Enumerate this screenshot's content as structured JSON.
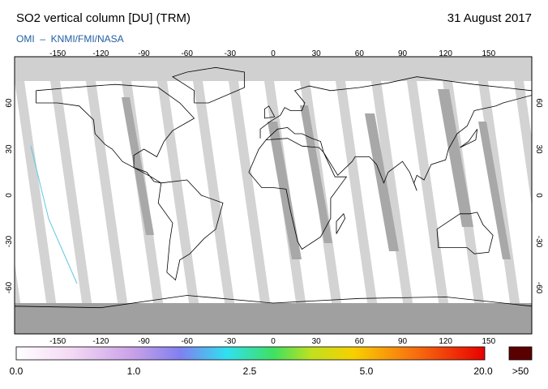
{
  "header": {
    "title": "SO2 vertical column [DU] (TRM)",
    "date": "31 August 2017",
    "source": "OMI  –  KNMI/FMI/NASA"
  },
  "map": {
    "lon_ticks": [
      -150,
      -120,
      -90,
      -60,
      -30,
      0,
      30,
      60,
      90,
      120,
      150
    ],
    "lat_ticks": [
      60,
      30,
      0,
      -30,
      -60
    ]
  },
  "colorbar": {
    "labels": [
      "0.0",
      "1.0",
      "2.5",
      "5.0",
      "20.0"
    ],
    "overflow_label": ">50"
  }
}
